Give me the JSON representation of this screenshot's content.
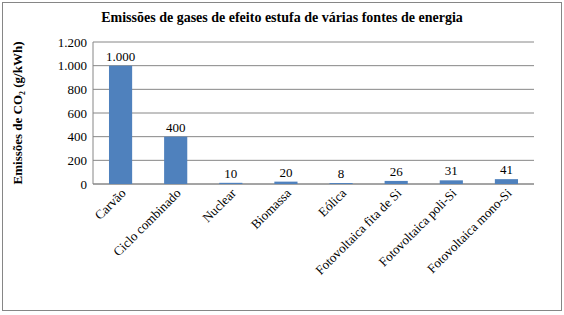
{
  "chart_data": {
    "type": "bar",
    "title": "Emissões de gases de efeito estufa de várias fontes de energia",
    "y_label": "Emissões de CO₂ (g/kWh)",
    "categories": [
      "Carvão",
      "Ciclo combinado",
      "Nuclear",
      "Biomassa",
      "Eólica",
      "Fotovoltaica fita de Si",
      "Fotovoltaica poli-Si",
      "Fotovoltaica mono-Si"
    ],
    "values": [
      1000,
      400,
      10,
      20,
      8,
      26,
      31,
      41
    ],
    "value_labels": [
      "1.000",
      "400",
      "10",
      "20",
      "8",
      "26",
      "31",
      "41"
    ],
    "color": "#4f81bd",
    "ylim": [
      0,
      1200
    ],
    "yticks": [
      0,
      200,
      400,
      600,
      800,
      {
        "value": 1000,
        "label": "1.000"
      },
      {
        "value": 1200,
        "label": "1.200"
      }
    ],
    "grid": true,
    "data_labels": true
  }
}
